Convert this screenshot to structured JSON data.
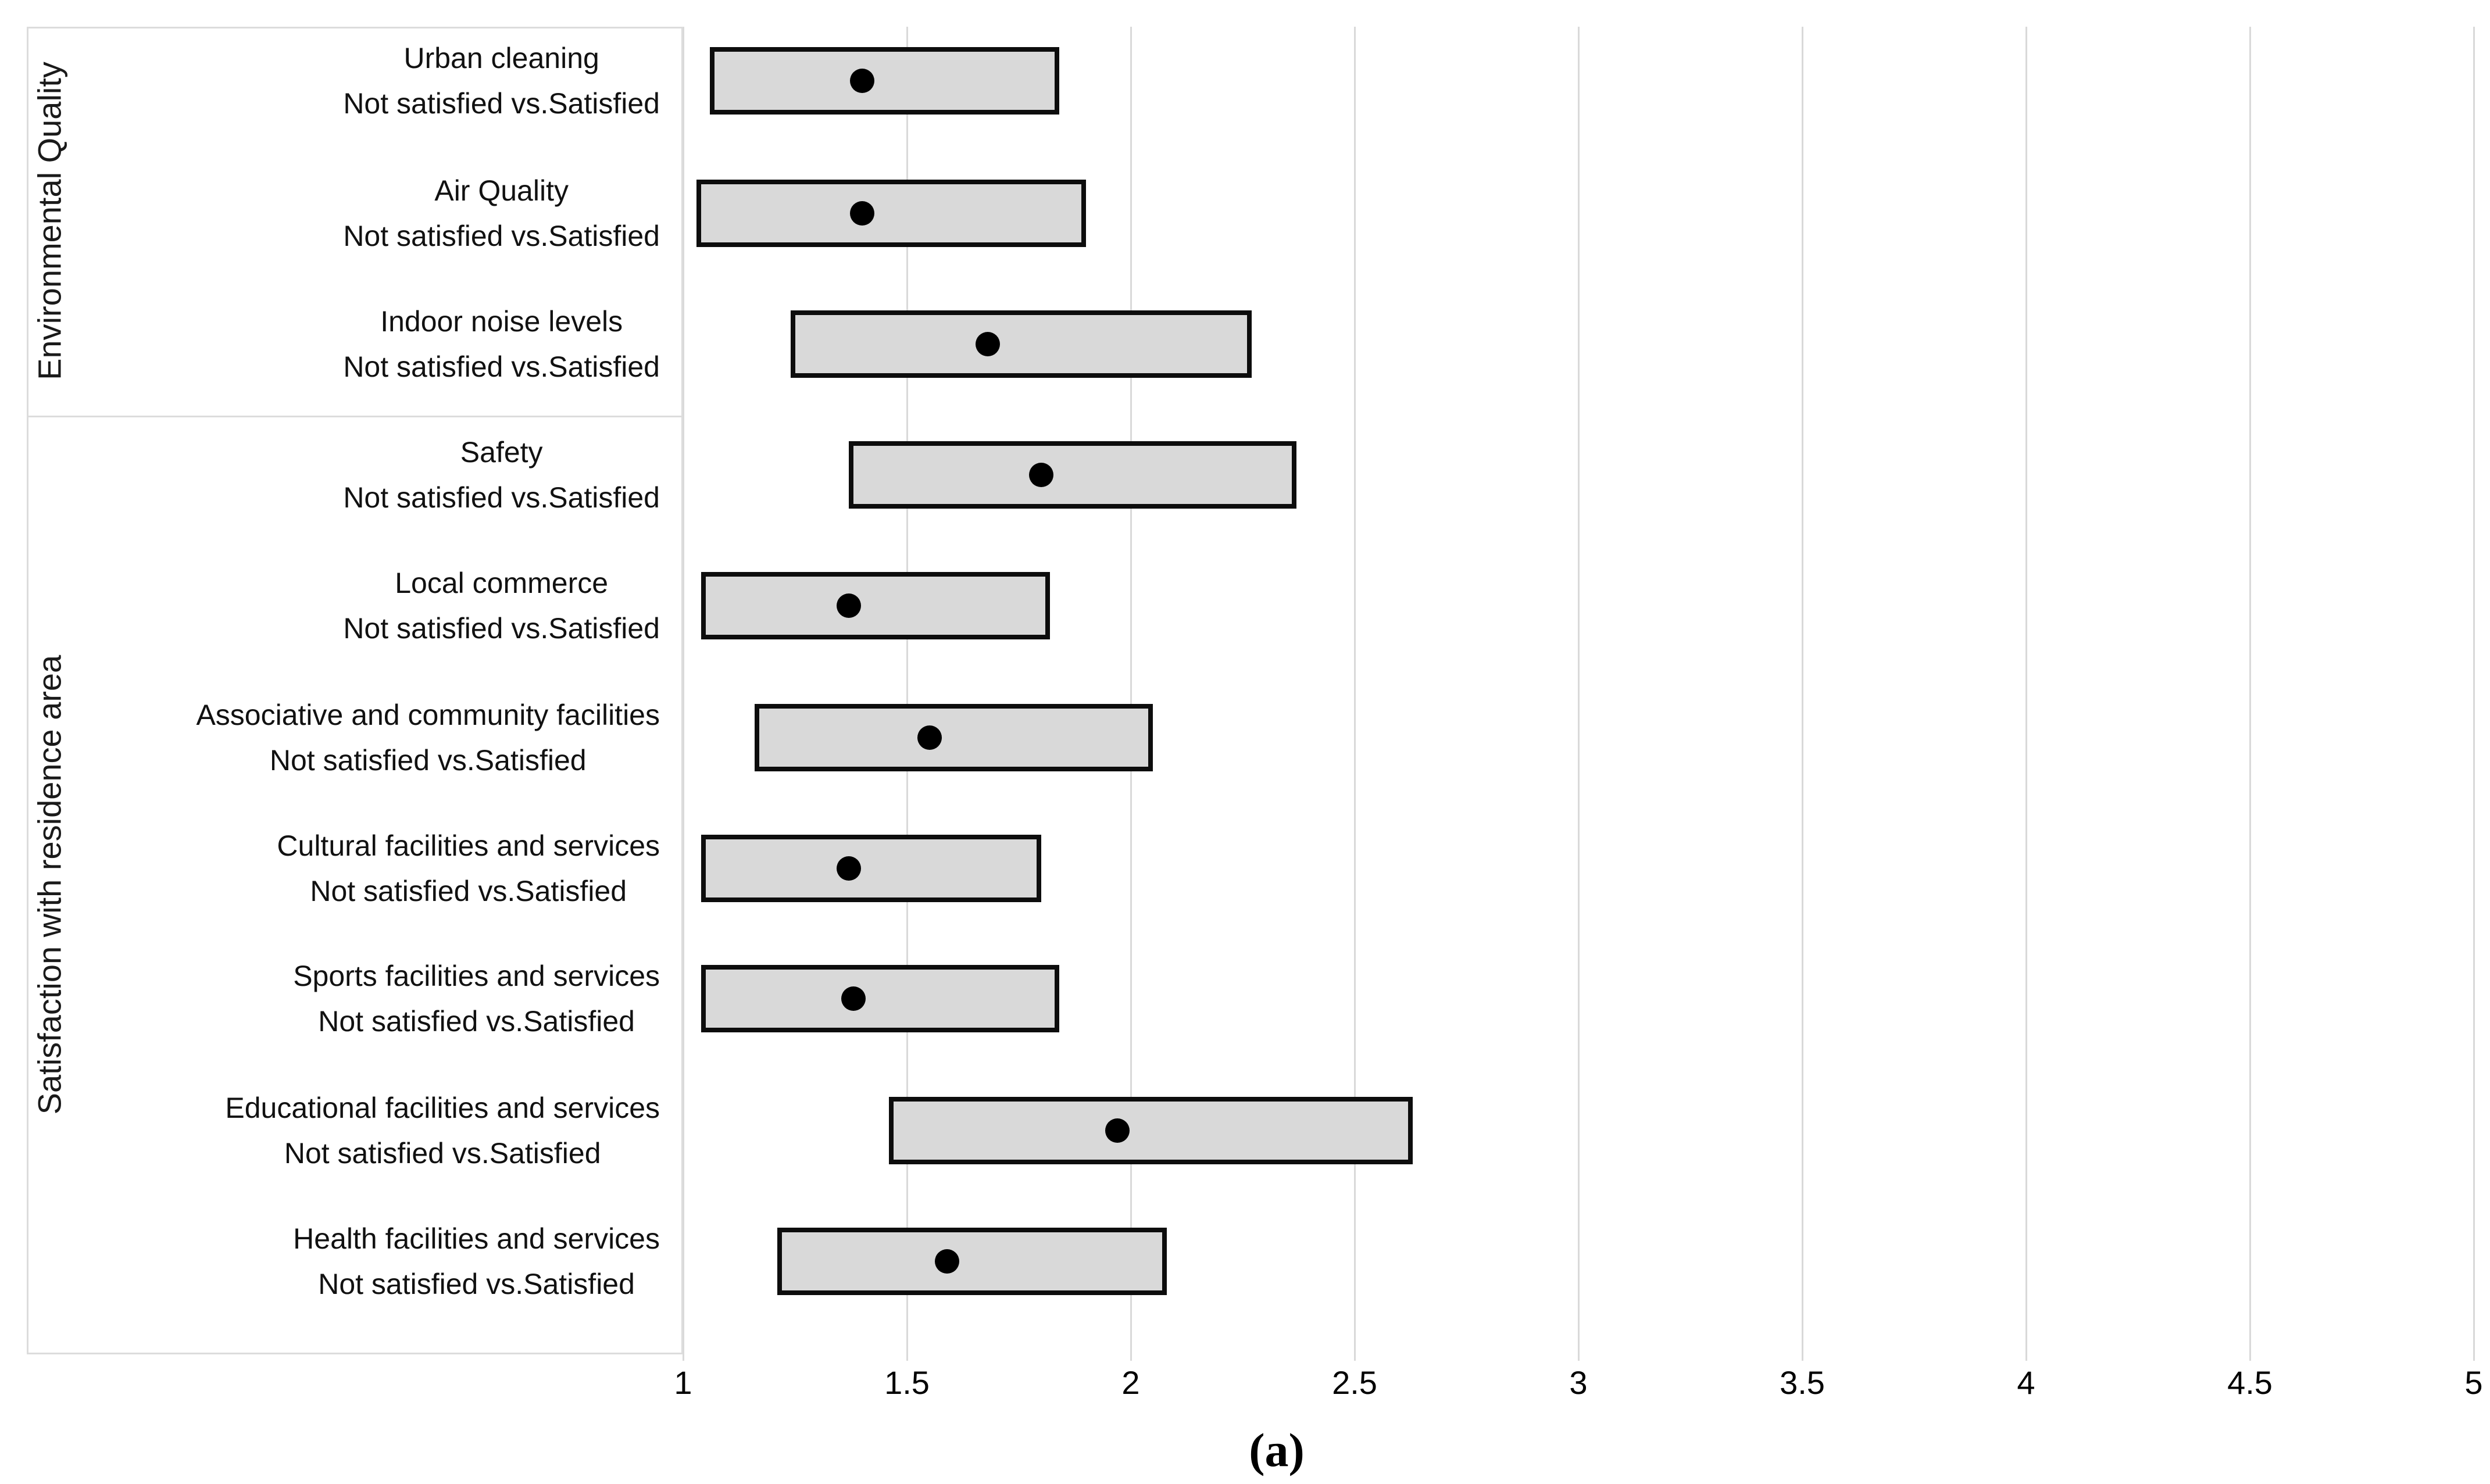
{
  "figure": {
    "caption": "(a)"
  },
  "chart_data": {
    "type": "bar",
    "orientation": "horizontal",
    "title": "",
    "xlabel": "",
    "ylabel": "",
    "xlim": [
      1,
      5
    ],
    "xticks": [
      1,
      1.5,
      2,
      2.5,
      3,
      3.5,
      4,
      4.5,
      5
    ],
    "xtick_labels": [
      "1",
      "1.5",
      "2",
      "2.5",
      "3",
      "3.5",
      "4",
      "4.5",
      "5"
    ],
    "grid": "vertical-on",
    "legend": "none",
    "groups": [
      {
        "label": "Environmental Quality",
        "row_indices": [
          0,
          1,
          2
        ]
      },
      {
        "label": "Satisfaction with residence area",
        "row_indices": [
          3,
          4,
          5,
          6,
          7,
          8,
          9
        ]
      }
    ],
    "rows": [
      {
        "group": "Environmental Quality",
        "label": "Urban cleaning",
        "sublabel": "Not satisfied vs.Satisfied",
        "ci_low": 1.06,
        "or": 1.4,
        "ci_high": 1.84
      },
      {
        "group": "Environmental Quality",
        "label": "Air Quality",
        "sublabel": "Not satisfied vs.Satisfied",
        "ci_low": 1.03,
        "or": 1.4,
        "ci_high": 1.9
      },
      {
        "group": "Environmental Quality",
        "label": "Indoor noise levels",
        "sublabel": "Not satisfied vs.Satisfied",
        "ci_low": 1.24,
        "or": 1.68,
        "ci_high": 2.27
      },
      {
        "group": "Satisfaction with residence area",
        "label": "Safety",
        "sublabel": "Not satisfied vs.Satisfied",
        "ci_low": 1.37,
        "or": 1.8,
        "ci_high": 2.37
      },
      {
        "group": "Satisfaction with residence area",
        "label": "Local commerce",
        "sublabel": "Not satisfied vs.Satisfied",
        "ci_low": 1.04,
        "or": 1.37,
        "ci_high": 1.82
      },
      {
        "group": "Satisfaction with residence area",
        "label": "Associative and community facilities",
        "sublabel": "Not satisfied vs.Satisfied",
        "ci_low": 1.16,
        "or": 1.55,
        "ci_high": 2.05
      },
      {
        "group": "Satisfaction with residence area",
        "label": "Cultural facilities and services",
        "sublabel": "Not satisfied vs.Satisfied",
        "ci_low": 1.04,
        "or": 1.37,
        "ci_high": 1.8
      },
      {
        "group": "Satisfaction with residence area",
        "label": "Sports facilities and services",
        "sublabel": "Not satisfied vs.Satisfied",
        "ci_low": 1.04,
        "or": 1.38,
        "ci_high": 1.84
      },
      {
        "group": "Satisfaction with residence area",
        "label": "Educational facilities and services",
        "sublabel": "Not satisfied vs.Satisfied",
        "ci_low": 1.46,
        "or": 1.97,
        "ci_high": 2.63
      },
      {
        "group": "Satisfaction with residence area",
        "label": "Health facilities and services",
        "sublabel": "Not satisfied vs.Satisfied",
        "ci_low": 1.21,
        "or": 1.59,
        "ci_high": 2.08
      }
    ]
  },
  "colors": {
    "background": "#ffffff",
    "box_fill": "#d9d9d9",
    "box_border": "#000000",
    "dot": "#000000",
    "gridline": "#d9d9d9",
    "panel_border": "#dcdcdc",
    "text": "#000000"
  }
}
